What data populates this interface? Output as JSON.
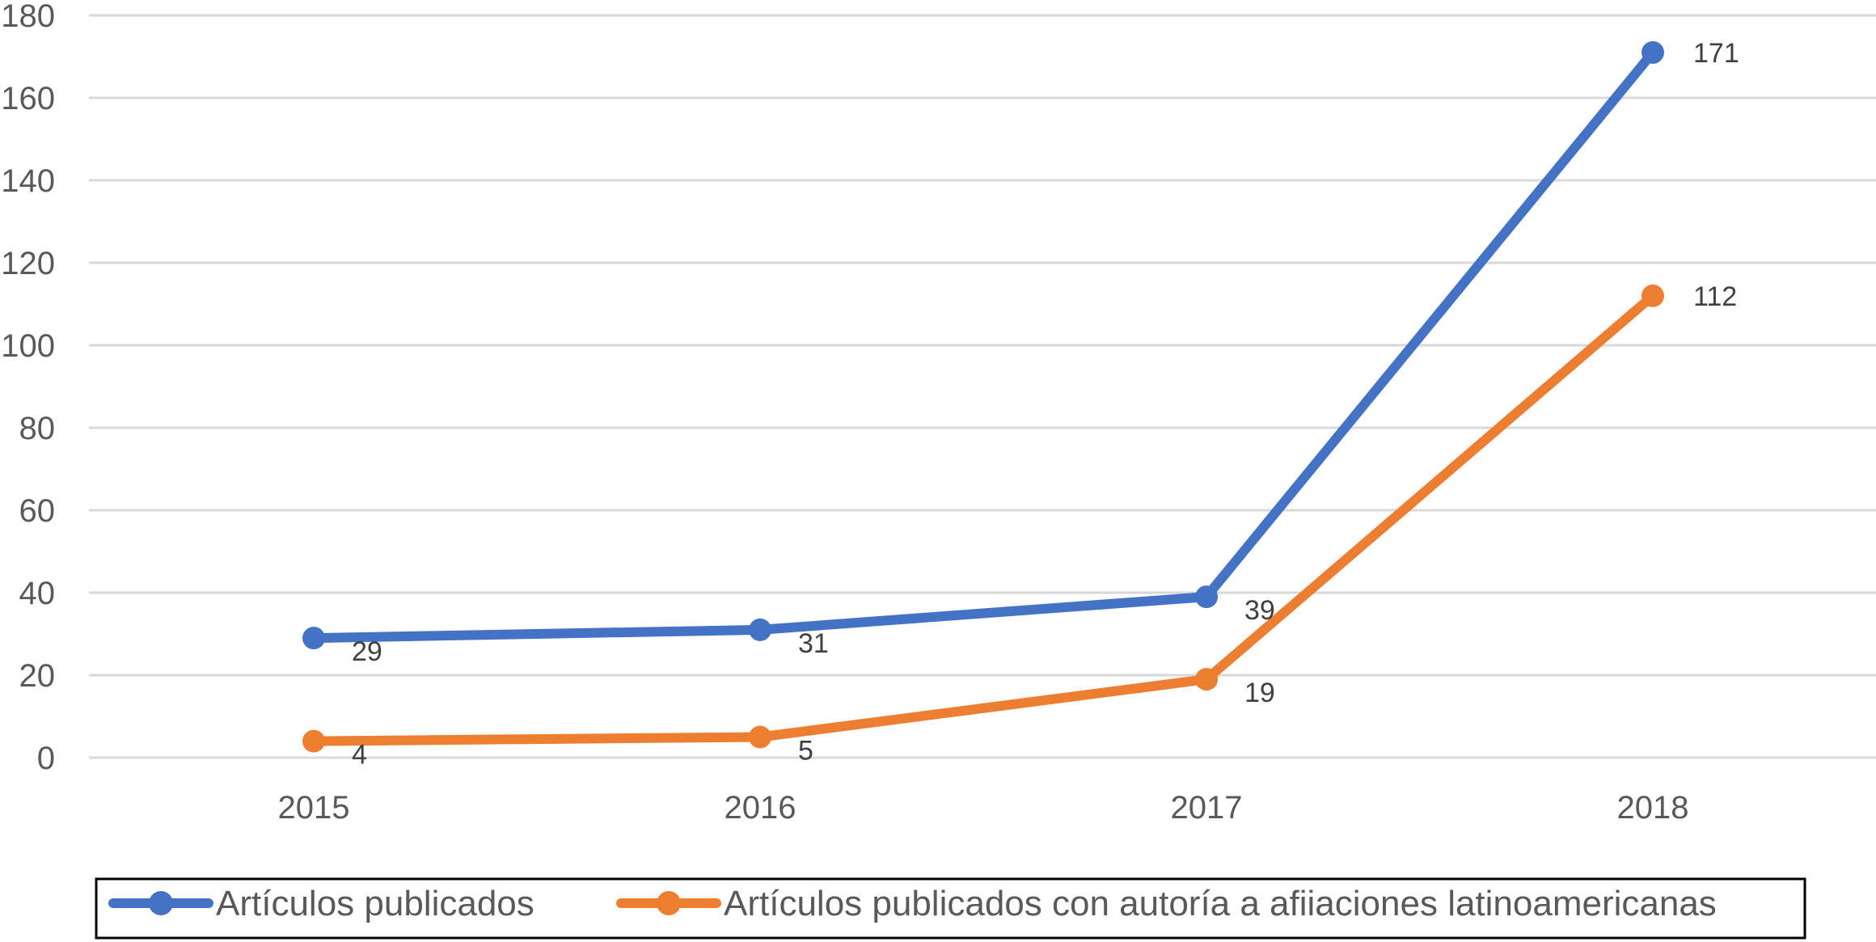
{
  "chart_data": {
    "type": "line",
    "title": "",
    "xlabel": "",
    "ylabel": "",
    "categories": [
      "2015",
      "2016",
      "2017",
      "2018"
    ],
    "ylim": [
      0,
      180
    ],
    "yticks": [
      0,
      20,
      40,
      60,
      80,
      100,
      120,
      140,
      160,
      180
    ],
    "grid": "horizontal",
    "legend_position": "bottom",
    "series": [
      {
        "name": "Artículos publicados",
        "color": "#4472C4",
        "values": [
          29,
          31,
          39,
          171
        ],
        "labels": [
          "29",
          "31",
          "39",
          "171"
        ]
      },
      {
        "name": "Artículos publicados con autoría a afiiaciones latinoamericanas",
        "color": "#ED7D31",
        "values": [
          4,
          5,
          19,
          112
        ],
        "labels": [
          "4",
          "5",
          "19",
          "112"
        ]
      }
    ]
  }
}
